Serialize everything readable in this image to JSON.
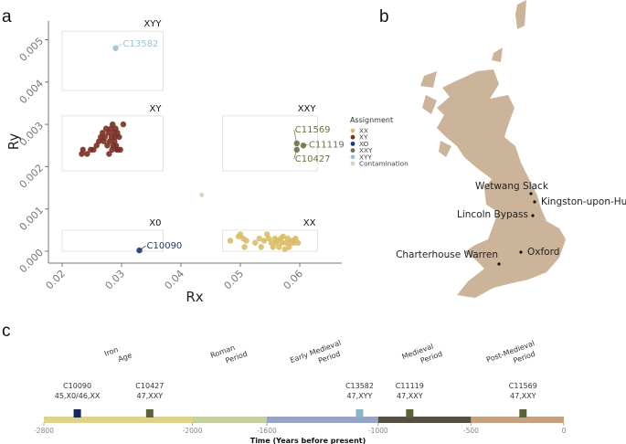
{
  "panels": {
    "a": "a",
    "b": "b",
    "c": "c"
  },
  "chart_data": [
    {
      "type": "scatter",
      "panel": "a",
      "xlabel": "Rx",
      "ylabel": "Ry",
      "xlim": [
        0.0175,
        0.0665
      ],
      "ylim": [
        -0.0001,
        0.0053
      ],
      "xticks": [
        "0.02",
        "0.03",
        "0.04",
        "0.05",
        "0.06"
      ],
      "yticks": [
        "0.000",
        "0.001",
        "0.002",
        "0.003",
        "0.004",
        "0.005"
      ],
      "grid": false,
      "legend": {
        "title": "Assignment",
        "placement": "right",
        "entries": [
          {
            "label": "XX",
            "color": "#d9bd65"
          },
          {
            "label": "XY",
            "color": "#7a2e22"
          },
          {
            "label": "XO",
            "color": "#1f3a6e"
          },
          {
            "label": "XXY",
            "color": "#6b7246"
          },
          {
            "label": "XYY",
            "color": "#9cc3cf"
          },
          {
            "label": "Contamination",
            "color": "#ddd0bd"
          }
        ]
      },
      "regions": [
        {
          "label": "XYY",
          "x": [
            0.02,
            0.037
          ],
          "y": [
            0.0038,
            0.0052
          ]
        },
        {
          "label": "XY",
          "x": [
            0.02,
            0.037
          ],
          "y": [
            0.0019,
            0.0032
          ]
        },
        {
          "label": "XXY",
          "x": [
            0.047,
            0.063
          ],
          "y": [
            0.0019,
            0.0032
          ]
        },
        {
          "label": "X0",
          "x": [
            0.02,
            0.037
          ],
          "y": [
            0.0,
            0.0005
          ]
        },
        {
          "label": "XX",
          "x": [
            0.047,
            0.063
          ],
          "y": [
            0.0,
            0.0005
          ]
        }
      ],
      "series": [
        {
          "name": "XY",
          "color": "#7a2e22",
          "points": [
            [
              0.0233,
              0.0023
            ],
            [
              0.0235,
              0.0024
            ],
            [
              0.0242,
              0.0023
            ],
            [
              0.0248,
              0.0024
            ],
            [
              0.0253,
              0.0024
            ],
            [
              0.0258,
              0.0025
            ],
            [
              0.0262,
              0.0026
            ],
            [
              0.0265,
              0.0027
            ],
            [
              0.0268,
              0.0028
            ],
            [
              0.027,
              0.0026
            ],
            [
              0.0272,
              0.0027
            ],
            [
              0.0274,
              0.0029
            ],
            [
              0.0276,
              0.0025
            ],
            [
              0.0278,
              0.0028
            ],
            [
              0.0279,
              0.0023
            ],
            [
              0.028,
              0.0026
            ],
            [
              0.0282,
              0.0029
            ],
            [
              0.0283,
              0.0027
            ],
            [
              0.0284,
              0.0024
            ],
            [
              0.0285,
              0.003
            ],
            [
              0.0286,
              0.0025
            ],
            [
              0.0287,
              0.0028
            ],
            [
              0.0288,
              0.0026
            ],
            [
              0.0289,
              0.0027
            ],
            [
              0.029,
              0.0029
            ],
            [
              0.0291,
              0.0025
            ],
            [
              0.0292,
              0.0024
            ],
            [
              0.0293,
              0.0028
            ],
            [
              0.0294,
              0.0024
            ],
            [
              0.0296,
              0.0027
            ],
            [
              0.0298,
              0.0024
            ],
            [
              0.0303,
              0.003
            ]
          ]
        },
        {
          "name": "XX",
          "color": "#d9bd65",
          "points": [
            [
              0.0483,
              0.00025
            ],
            [
              0.0497,
              0.00035
            ],
            [
              0.05,
              0.0004
            ],
            [
              0.0505,
              0.0003
            ],
            [
              0.0507,
              0.0001
            ],
            [
              0.051,
              0.00025
            ],
            [
              0.0525,
              0.0002
            ],
            [
              0.0532,
              0.0003
            ],
            [
              0.0535,
              0.0001
            ],
            [
              0.054,
              0.00025
            ],
            [
              0.0545,
              0.0004
            ],
            [
              0.0548,
              0.0003
            ],
            [
              0.0552,
              0.0002
            ],
            [
              0.0555,
              0.0001
            ],
            [
              0.0558,
              0.0003
            ],
            [
              0.056,
              0.0002
            ],
            [
              0.0562,
              0.00025
            ],
            [
              0.0565,
              0.0001
            ],
            [
              0.0568,
              0.0003
            ],
            [
              0.057,
              0.0002
            ],
            [
              0.0572,
              0.00035
            ],
            [
              0.0575,
              5e-05
            ],
            [
              0.0577,
              0.0002
            ],
            [
              0.058,
              0.0003
            ],
            [
              0.0582,
              0.0001
            ],
            [
              0.0585,
              0.0002
            ],
            [
              0.0588,
              0.00025
            ],
            [
              0.059,
              0.0002
            ],
            [
              0.0593,
              0.0003
            ],
            [
              0.0597,
              0.0002
            ]
          ]
        },
        {
          "name": "XO",
          "color": "#1f3a6e",
          "points": [
            [
              0.033,
              2e-05
            ]
          ],
          "labels": [
            "C10090"
          ]
        },
        {
          "name": "XXY",
          "color": "#6b7246",
          "points": [
            [
              0.0595,
              0.00255
            ],
            [
              0.0606,
              0.0025
            ],
            [
              0.0595,
              0.0024
            ]
          ],
          "labels": [
            "C11569",
            "C11119",
            "C10427"
          ]
        },
        {
          "name": "XYY",
          "color": "#9cc3cf",
          "points": [
            [
              0.029,
              0.0048
            ]
          ],
          "labels": [
            "C13582"
          ]
        },
        {
          "name": "Contamination",
          "color": "#ddd0bd",
          "points": [
            [
              0.0435,
              0.00133
            ]
          ]
        }
      ]
    },
    {
      "type": "timeline",
      "panel": "c",
      "xlabel": "Time (Years before present)",
      "xlim": [
        -2800,
        0
      ],
      "xticks": [
        "-2800",
        "-2000",
        "-1600",
        "-1000",
        "-500",
        "0"
      ],
      "periods": [
        {
          "line1": "Iron",
          "line2": "Age",
          "start": -2800,
          "end": -2000,
          "color": "#e0d28a"
        },
        {
          "line1": "Roman",
          "line2": "Period",
          "start": -2000,
          "end": -1600,
          "color": "#c5d09e"
        },
        {
          "line1": "Early Medieval",
          "line2": "Period",
          "start": -1600,
          "end": -1000,
          "color": "#97a3c4"
        },
        {
          "line1": "Medieval",
          "line2": "Period",
          "start": -1000,
          "end": -500,
          "color": "#555044"
        },
        {
          "line1": "Post-Medieval",
          "line2": "Period",
          "start": -500,
          "end": 0,
          "color": "#c3a182"
        }
      ],
      "samples": [
        {
          "id": "C10090",
          "karyotype": "45,X0/46,XX",
          "time": -2620,
          "color": "#13295a"
        },
        {
          "id": "C10427",
          "karyotype": "47,XXY",
          "time": -2230,
          "color": "#5a6236"
        },
        {
          "id": "C13582",
          "karyotype": "47,XYY",
          "time": -1100,
          "color": "#8cb6c4"
        },
        {
          "id": "C11119",
          "karyotype": "47,XXY",
          "time": -830,
          "color": "#5a6236"
        },
        {
          "id": "C11569",
          "karyotype": "47,XXY",
          "time": -220,
          "color": "#5a6236"
        }
      ]
    }
  ],
  "map": {
    "land_color": "#ccb49b",
    "sites": [
      "Wetwang Slack",
      "Kingston-upon-Hull",
      "Lincoln Bypass",
      "Oxford",
      "Charterhouse Warren"
    ]
  }
}
